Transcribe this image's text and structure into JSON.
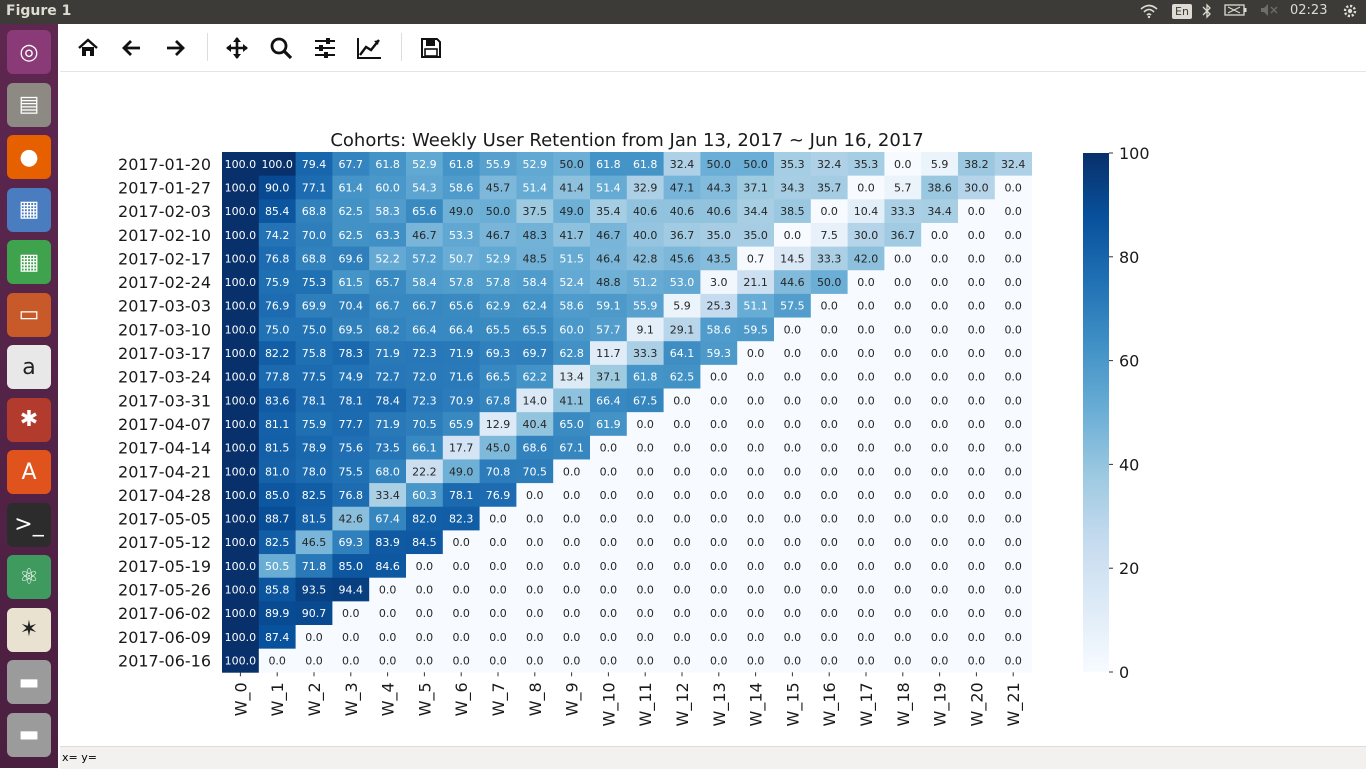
{
  "window": {
    "title": "Figure 1"
  },
  "tray": {
    "lang": "En",
    "time": "02:23"
  },
  "launcher": {
    "items": [
      {
        "name": "ubuntu-dash-icon",
        "glyph": "◎",
        "bg": "#8a3a76"
      },
      {
        "name": "files-icon",
        "glyph": "▤",
        "bg": "#8d8a84"
      },
      {
        "name": "firefox-icon",
        "glyph": "●",
        "bg": "#e66000"
      },
      {
        "name": "document-viewer-icon",
        "glyph": "▦",
        "bg": "#4a7cc0"
      },
      {
        "name": "spreadsheet-icon",
        "glyph": "▦",
        "bg": "#3fa34d"
      },
      {
        "name": "presentation-icon",
        "glyph": "▭",
        "bg": "#c85a2a"
      },
      {
        "name": "amazon-icon",
        "glyph": "a",
        "bg": "#e8e8e8"
      },
      {
        "name": "system-settings-icon",
        "glyph": "✱",
        "bg": "#b33b2e"
      },
      {
        "name": "software-center-icon",
        "glyph": "A",
        "bg": "#e0531c"
      },
      {
        "name": "terminal-icon",
        "glyph": ">_",
        "bg": "#2c2c2c"
      },
      {
        "name": "atom-icon",
        "glyph": "⚛",
        "bg": "#3f9a5f"
      },
      {
        "name": "pinwheel-app-icon",
        "glyph": "✶",
        "bg": "#e9e2d0"
      },
      {
        "name": "disk-drive-icon",
        "glyph": "▬",
        "bg": "#9b9b9b"
      },
      {
        "name": "disk-drive-2-icon",
        "glyph": "▬",
        "bg": "#9b9b9b"
      }
    ]
  },
  "toolbar": {
    "buttons": [
      {
        "name": "home-button",
        "icon": "home-icon"
      },
      {
        "name": "back-button",
        "icon": "arrow-left-icon"
      },
      {
        "name": "forward-button",
        "icon": "arrow-right-icon"
      },
      {
        "name": "pan-button",
        "icon": "move-icon"
      },
      {
        "name": "zoom-button",
        "icon": "magnifier-icon"
      },
      {
        "name": "configure-subplots-button",
        "icon": "sliders-icon"
      },
      {
        "name": "edit-axis-button",
        "icon": "line-chart-icon"
      },
      {
        "name": "save-button",
        "icon": "floppy-disk-icon"
      }
    ]
  },
  "status": {
    "text": "x= y="
  },
  "chart_data": {
    "type": "heatmap",
    "title": "Cohorts: Weekly User Retention from Jan 13, 2017 ~ Jun 16, 2017",
    "x_labels": [
      "W_0",
      "W_1",
      "W_2",
      "W_3",
      "W_4",
      "W_5",
      "W_6",
      "W_7",
      "W_8",
      "W_9",
      "W_10",
      "W_11",
      "W_12",
      "W_13",
      "W_14",
      "W_15",
      "W_16",
      "W_17",
      "W_18",
      "W_19",
      "W_20",
      "W_21"
    ],
    "y_labels": [
      "2017-01-20",
      "2017-01-27",
      "2017-02-03",
      "2017-02-10",
      "2017-02-17",
      "2017-02-24",
      "2017-03-03",
      "2017-03-10",
      "2017-03-17",
      "2017-03-24",
      "2017-03-31",
      "2017-04-07",
      "2017-04-14",
      "2017-04-21",
      "2017-04-28",
      "2017-05-05",
      "2017-05-12",
      "2017-05-19",
      "2017-05-26",
      "2017-06-02",
      "2017-06-09",
      "2017-06-16"
    ],
    "values": [
      [
        100.0,
        100.0,
        79.4,
        67.7,
        61.8,
        52.9,
        61.8,
        55.9,
        52.9,
        50.0,
        61.8,
        61.8,
        32.4,
        50.0,
        50.0,
        35.3,
        32.4,
        35.3,
        0.0,
        5.9,
        38.2,
        32.4
      ],
      [
        100.0,
        90.0,
        77.1,
        61.4,
        60.0,
        54.3,
        58.6,
        45.7,
        51.4,
        41.4,
        51.4,
        32.9,
        47.1,
        44.3,
        37.1,
        34.3,
        35.7,
        0.0,
        5.7,
        38.6,
        30.0,
        0.0
      ],
      [
        100.0,
        85.4,
        68.8,
        62.5,
        58.3,
        65.6,
        49.0,
        50.0,
        37.5,
        49.0,
        35.4,
        40.6,
        40.6,
        40.6,
        34.4,
        38.5,
        0.0,
        10.4,
        33.3,
        34.4,
        0.0,
        0.0
      ],
      [
        100.0,
        74.2,
        70.0,
        62.5,
        63.3,
        46.7,
        53.3,
        46.7,
        48.3,
        41.7,
        46.7,
        40.0,
        36.7,
        35.0,
        35.0,
        0.0,
        7.5,
        30.0,
        36.7,
        0.0,
        0.0,
        0.0
      ],
      [
        100.0,
        76.8,
        68.8,
        69.6,
        52.2,
        57.2,
        50.7,
        52.9,
        48.5,
        51.5,
        46.4,
        42.8,
        45.6,
        43.5,
        0.7,
        14.5,
        33.3,
        42.0,
        0.0,
        0.0,
        0.0,
        0.0
      ],
      [
        100.0,
        75.9,
        75.3,
        61.5,
        65.7,
        58.4,
        57.8,
        57.8,
        58.4,
        52.4,
        48.8,
        51.2,
        53.0,
        3.0,
        21.1,
        44.6,
        50.0,
        0.0,
        0.0,
        0.0,
        0.0,
        0.0
      ],
      [
        100.0,
        76.9,
        69.9,
        70.4,
        66.7,
        66.7,
        65.6,
        62.9,
        62.4,
        58.6,
        59.1,
        55.9,
        5.9,
        25.3,
        51.1,
        57.5,
        0.0,
        0.0,
        0.0,
        0.0,
        0.0,
        0.0
      ],
      [
        100.0,
        75.0,
        75.0,
        69.5,
        68.2,
        66.4,
        66.4,
        65.5,
        65.5,
        60.0,
        57.7,
        9.1,
        29.1,
        58.6,
        59.5,
        0.0,
        0.0,
        0.0,
        0.0,
        0.0,
        0.0,
        0.0
      ],
      [
        100.0,
        82.2,
        75.8,
        78.3,
        71.9,
        72.3,
        71.9,
        69.3,
        69.7,
        62.8,
        11.7,
        33.3,
        64.1,
        59.3,
        0.0,
        0.0,
        0.0,
        0.0,
        0.0,
        0.0,
        0.0,
        0.0
      ],
      [
        100.0,
        77.8,
        77.5,
        74.9,
        72.7,
        72.0,
        71.6,
        66.5,
        62.2,
        13.4,
        37.1,
        61.8,
        62.5,
        0.0,
        0.0,
        0.0,
        0.0,
        0.0,
        0.0,
        0.0,
        0.0,
        0.0
      ],
      [
        100.0,
        83.6,
        78.1,
        78.1,
        78.4,
        72.3,
        70.9,
        67.8,
        14.0,
        41.1,
        66.4,
        67.5,
        0.0,
        0.0,
        0.0,
        0.0,
        0.0,
        0.0,
        0.0,
        0.0,
        0.0,
        0.0
      ],
      [
        100.0,
        81.1,
        75.9,
        77.7,
        71.9,
        70.5,
        65.9,
        12.9,
        40.4,
        65.0,
        61.9,
        0.0,
        0.0,
        0.0,
        0.0,
        0.0,
        0.0,
        0.0,
        0.0,
        0.0,
        0.0,
        0.0
      ],
      [
        100.0,
        81.5,
        78.9,
        75.6,
        73.5,
        66.1,
        17.7,
        45.0,
        68.6,
        67.1,
        0.0,
        0.0,
        0.0,
        0.0,
        0.0,
        0.0,
        0.0,
        0.0,
        0.0,
        0.0,
        0.0,
        0.0
      ],
      [
        100.0,
        81.0,
        78.0,
        75.5,
        68.0,
        22.2,
        49.0,
        70.8,
        70.5,
        0.0,
        0.0,
        0.0,
        0.0,
        0.0,
        0.0,
        0.0,
        0.0,
        0.0,
        0.0,
        0.0,
        0.0,
        0.0
      ],
      [
        100.0,
        85.0,
        82.5,
        76.8,
        33.4,
        60.3,
        78.1,
        76.9,
        0.0,
        0.0,
        0.0,
        0.0,
        0.0,
        0.0,
        0.0,
        0.0,
        0.0,
        0.0,
        0.0,
        0.0,
        0.0,
        0.0
      ],
      [
        100.0,
        88.7,
        81.5,
        42.6,
        67.4,
        82.0,
        82.3,
        0.0,
        0.0,
        0.0,
        0.0,
        0.0,
        0.0,
        0.0,
        0.0,
        0.0,
        0.0,
        0.0,
        0.0,
        0.0,
        0.0,
        0.0
      ],
      [
        100.0,
        82.5,
        46.5,
        69.3,
        83.9,
        84.5,
        0.0,
        0.0,
        0.0,
        0.0,
        0.0,
        0.0,
        0.0,
        0.0,
        0.0,
        0.0,
        0.0,
        0.0,
        0.0,
        0.0,
        0.0,
        0.0
      ],
      [
        100.0,
        50.5,
        71.8,
        85.0,
        84.6,
        0.0,
        0.0,
        0.0,
        0.0,
        0.0,
        0.0,
        0.0,
        0.0,
        0.0,
        0.0,
        0.0,
        0.0,
        0.0,
        0.0,
        0.0,
        0.0,
        0.0
      ],
      [
        100.0,
        85.8,
        93.5,
        94.4,
        0.0,
        0.0,
        0.0,
        0.0,
        0.0,
        0.0,
        0.0,
        0.0,
        0.0,
        0.0,
        0.0,
        0.0,
        0.0,
        0.0,
        0.0,
        0.0,
        0.0,
        0.0
      ],
      [
        100.0,
        89.9,
        90.7,
        0.0,
        0.0,
        0.0,
        0.0,
        0.0,
        0.0,
        0.0,
        0.0,
        0.0,
        0.0,
        0.0,
        0.0,
        0.0,
        0.0,
        0.0,
        0.0,
        0.0,
        0.0,
        0.0
      ],
      [
        100.0,
        87.4,
        0.0,
        0.0,
        0.0,
        0.0,
        0.0,
        0.0,
        0.0,
        0.0,
        0.0,
        0.0,
        0.0,
        0.0,
        0.0,
        0.0,
        0.0,
        0.0,
        0.0,
        0.0,
        0.0,
        0.0
      ],
      [
        100.0,
        0.0,
        0.0,
        0.0,
        0.0,
        0.0,
        0.0,
        0.0,
        0.0,
        0.0,
        0.0,
        0.0,
        0.0,
        0.0,
        0.0,
        0.0,
        0.0,
        0.0,
        0.0,
        0.0,
        0.0,
        0.0
      ]
    ],
    "colorbar": {
      "min": 0,
      "max": 100,
      "ticks": [
        0,
        20,
        40,
        60,
        80,
        100
      ]
    },
    "colormap": "Blues",
    "colors": [
      "#f7fbff",
      "#deebf7",
      "#c6dbef",
      "#9ecae1",
      "#6baed6",
      "#4292c6",
      "#2171b5",
      "#08519c",
      "#08306b"
    ]
  }
}
